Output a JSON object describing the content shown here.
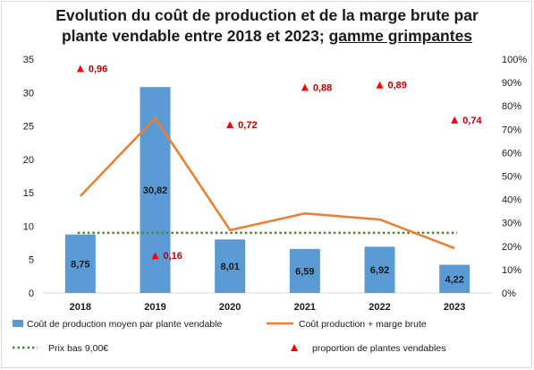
{
  "chart_data": {
    "type": "bar",
    "title_line1": "Evolution du coût de production et de la marge brute par",
    "title_line2_prefix": "plante vendable entre 2018 et 2023; ",
    "title_line2_underlined": "gamme grimpantes",
    "categories": [
      "2018",
      "2019",
      "2020",
      "2021",
      "2022",
      "2023"
    ],
    "ylim_left": [
      0,
      35
    ],
    "yticks_left": [
      "0",
      "5",
      "10",
      "15",
      "20",
      "25",
      "30",
      "35"
    ],
    "ylim_right": [
      0,
      1
    ],
    "yticks_right": [
      "0%",
      "10%",
      "20%",
      "30%",
      "40%",
      "50%",
      "60%",
      "70%",
      "80%",
      "90%",
      "100%"
    ],
    "series": [
      {
        "name": "Coût de production moyen par plante vendable",
        "type": "bar",
        "axis": "left",
        "color": "#5b9bd5",
        "values": [
          8.75,
          30.82,
          8.01,
          6.59,
          6.92,
          4.22
        ],
        "labels": [
          "8,75",
          "30,82",
          "8,01",
          "6,59",
          "6,92",
          "4,22"
        ]
      },
      {
        "name": "Coût production + marge brute",
        "type": "line",
        "axis": "left",
        "color": "#ed7d31",
        "values": [
          14.5,
          26.2,
          9.4,
          11.9,
          11.0,
          6.7
        ]
      },
      {
        "name": "Prix bas 9,00€",
        "type": "line-dotted",
        "axis": "left",
        "color": "#548235",
        "values": [
          9,
          9,
          9,
          9,
          9,
          9
        ]
      },
      {
        "name": "proportion de plantes vendables",
        "type": "scatter",
        "axis": "right",
        "color": "#ff0000",
        "label_color": "#c00000",
        "values": [
          0.96,
          0.16,
          0.72,
          0.88,
          0.89,
          0.74
        ],
        "labels": [
          "0,96",
          "0,16",
          "0,72",
          "0,88",
          "0,89",
          "0,74"
        ]
      }
    ],
    "legend_position": "bottom",
    "grid": false
  }
}
